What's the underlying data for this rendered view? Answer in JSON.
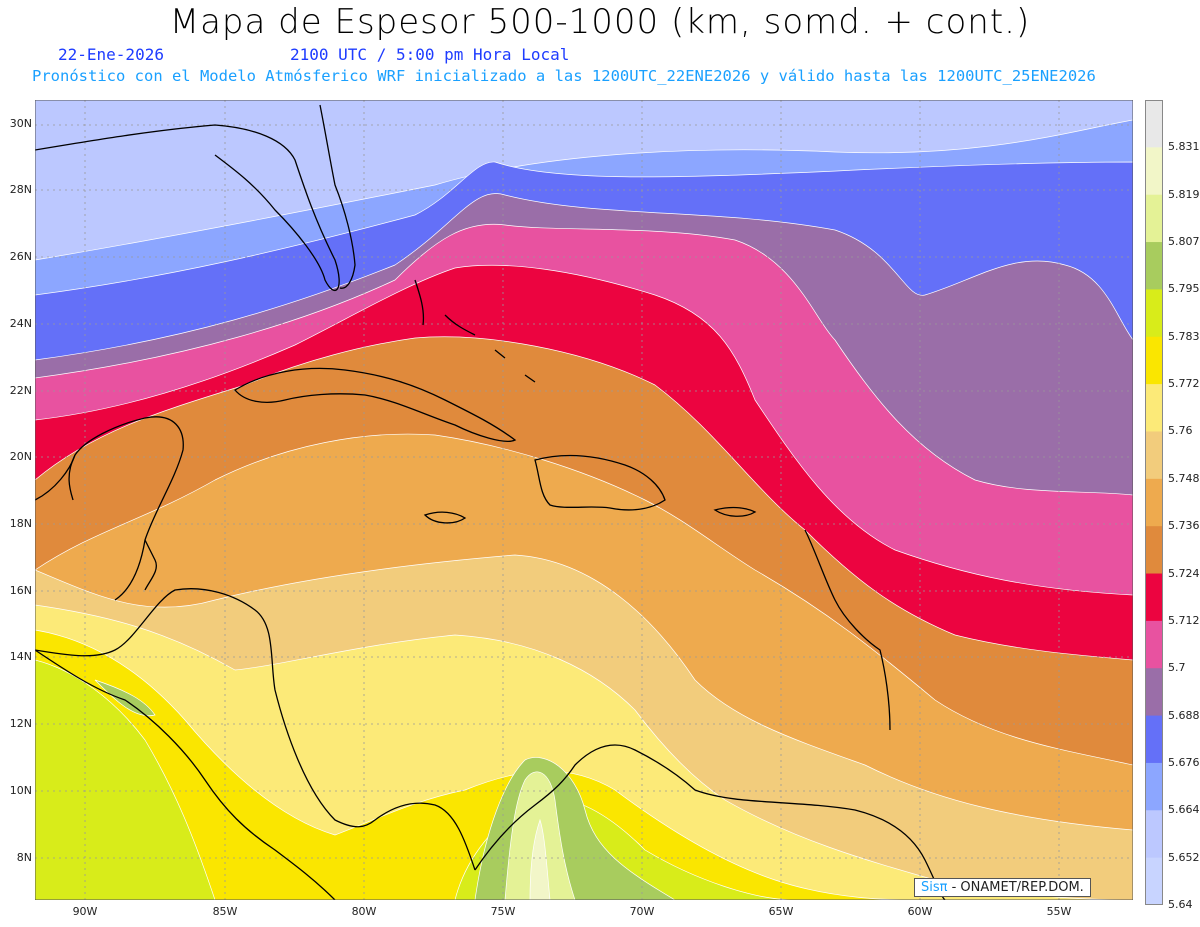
{
  "header": {
    "title": "Mapa de Espesor 500-1000 (km, somd. + cont.)",
    "date": "22-Ene-2026",
    "time": "2100 UTC / 5:00 pm Hora Local",
    "description": "Pronóstico con el Modelo Atmósferico WRF inicializado a las 1200UTC_22ENE2026 y válido hasta las  1200UTC_25ENE2026"
  },
  "axes": {
    "lat_labels": [
      "30N",
      "28N",
      "26N",
      "24N",
      "22N",
      "20N",
      "18N",
      "16N",
      "14N",
      "12N",
      "10N",
      "8N"
    ],
    "lon_labels": [
      "90W",
      "85W",
      "80W",
      "75W",
      "70W",
      "65W",
      "60W",
      "55W"
    ]
  },
  "colorbar": {
    "labels": [
      "5.831",
      "5.819",
      "5.807",
      "5.795",
      "5.783",
      "5.772",
      "5.76",
      "5.748",
      "5.736",
      "5.724",
      "5.712",
      "5.7",
      "5.688",
      "5.676",
      "5.664",
      "5.652",
      "5.64"
    ],
    "colors": [
      "#e8e8e8",
      "#f2f6c8",
      "#e4f296",
      "#a8cc5e",
      "#d8ec1a",
      "#fae600",
      "#fcea78",
      "#f2cc7c",
      "#eeaa4e",
      "#e08a3c",
      "#ec0440",
      "#e852a0",
      "#9a6ea8",
      "#6470f8",
      "#8ca6ff",
      "#bcc8ff"
    ],
    "bottom_color": "#c8d4ff"
  },
  "credit": {
    "brand": "Sisπ",
    "text": " - ONAMET/REP.DOM."
  }
}
